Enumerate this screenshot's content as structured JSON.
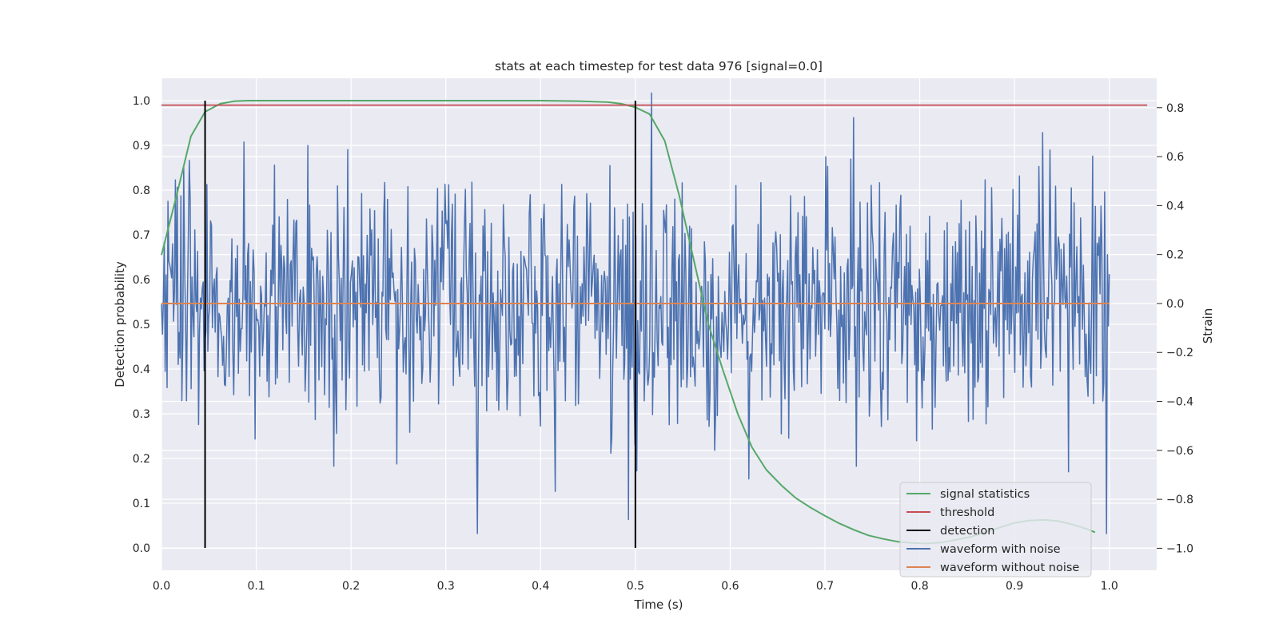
{
  "chart_data": {
    "type": "line",
    "title": "stats at each timestep for test data 976 [signal=0.0]",
    "xlabel": "Time (s)",
    "ylabel": "Detection probability",
    "y2label": "Strain",
    "xlim": [
      0.0,
      1.05
    ],
    "ylim": [
      -0.05,
      1.05
    ],
    "y2lim": [
      -1.09,
      0.92
    ],
    "grid": true,
    "legend_position": "lower-right",
    "x_ticks": [
      "0.0",
      "0.1",
      "0.2",
      "0.3",
      "0.4",
      "0.5",
      "0.6",
      "0.7",
      "0.8",
      "0.9",
      "1.0"
    ],
    "y_ticks": [
      "0.0",
      "0.1",
      "0.2",
      "0.3",
      "0.4",
      "0.5",
      "0.6",
      "0.7",
      "0.8",
      "0.9",
      "1.0"
    ],
    "y2_ticks": [
      "−1.0",
      "−0.8",
      "−0.6",
      "−0.4",
      "−0.2",
      "0.0",
      "0.2",
      "0.4",
      "0.6",
      "0.8"
    ],
    "series": [
      {
        "name": "signal statistics",
        "color": "#55a868",
        "axis": "left",
        "x": [
          0.0,
          0.015,
          0.031,
          0.046,
          0.062,
          0.077,
          0.092,
          0.108,
          0.2,
          0.3,
          0.4,
          0.44,
          0.47,
          0.485,
          0.5,
          0.515,
          0.531,
          0.546,
          0.562,
          0.577,
          0.592,
          0.608,
          0.623,
          0.638,
          0.654,
          0.669,
          0.685,
          0.7,
          0.715,
          0.731,
          0.746,
          0.762,
          0.777,
          0.792,
          0.808,
          0.823,
          0.838,
          0.854,
          0.869,
          0.885,
          0.9,
          0.915,
          0.931,
          0.946,
          0.962,
          0.977,
          0.985
        ],
        "y": [
          0.655,
          0.78,
          0.92,
          0.975,
          0.993,
          0.999,
          1.0,
          1.0,
          1.0,
          1.0,
          1.0,
          0.999,
          0.997,
          0.993,
          0.985,
          0.97,
          0.91,
          0.79,
          0.64,
          0.5,
          0.4,
          0.3,
          0.225,
          0.175,
          0.14,
          0.112,
          0.09,
          0.072,
          0.055,
          0.04,
          0.028,
          0.02,
          0.014,
          0.011,
          0.01,
          0.012,
          0.018,
          0.025,
          0.035,
          0.046,
          0.056,
          0.061,
          0.063,
          0.06,
          0.052,
          0.042,
          0.035
        ]
      },
      {
        "name": "threshold",
        "color": "#c44e52",
        "axis": "left",
        "x": [
          0.0,
          1.04
        ],
        "y": [
          0.99,
          0.99
        ]
      },
      {
        "name": "detection",
        "color": "#000000",
        "axis": "left",
        "x": [
          0.046,
          0.5
        ],
        "y": [
          1.0,
          1.0
        ]
      },
      {
        "name": "waveform with noise",
        "color": "#4c72b0",
        "axis": "right",
        "generated": true,
        "x_range": [
          0.0,
          1.0
        ],
        "n_points": 1024,
        "approx_range": [
          -0.94,
          0.86
        ]
      },
      {
        "name": "waveform without noise",
        "color": "#dd8452",
        "axis": "right",
        "x": [
          0.0,
          1.0
        ],
        "y": [
          0.0,
          0.0
        ]
      }
    ]
  }
}
